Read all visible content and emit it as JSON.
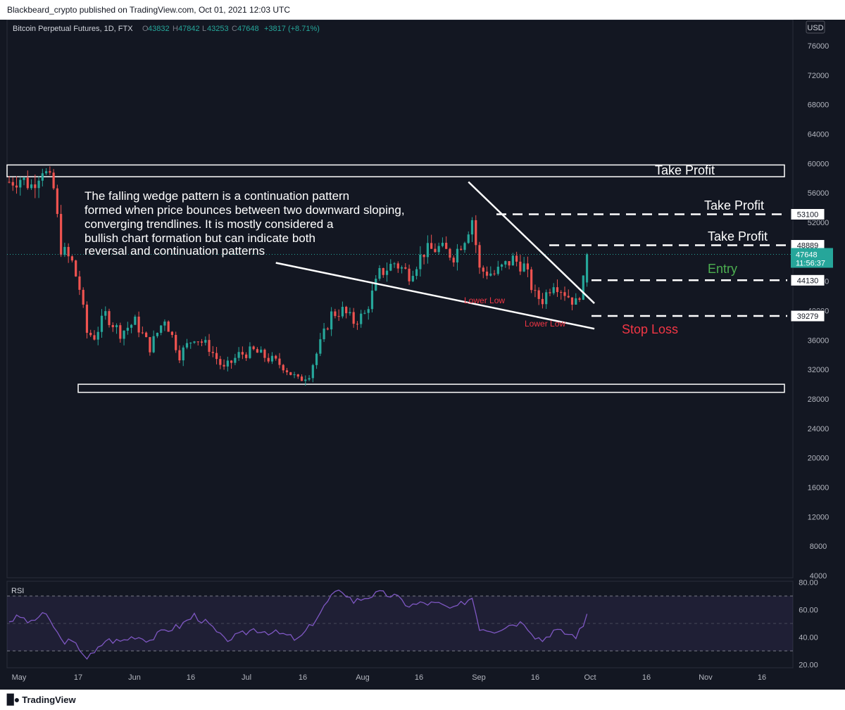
{
  "publisher_line": "Blackbeard_crypto published on TradingView.com, Oct 01, 2021 12:03 UTC",
  "brand": "TradingView",
  "brand_icon": "tradingview-logo-icon",
  "colors": {
    "background": "#131722",
    "up": "#26a69a",
    "down": "#ef5350",
    "rsi": "#7e57c2",
    "entry": "#4caf50",
    "stop": "#f23645"
  },
  "chart_data": {
    "type": "candlestick",
    "title": "Bitcoin Perpetual Futures, 1D, FTX",
    "ohlc": {
      "O": "43832",
      "H": "47842",
      "L": "43253",
      "C": "47648",
      "change": "+3817 (+8.71%)"
    },
    "currency": "USD",
    "y_ticks": [
      "76000",
      "72000",
      "68000",
      "64000",
      "60000",
      "56000",
      "52000",
      "48000",
      "44000",
      "40000",
      "36000",
      "32000",
      "28000",
      "24000",
      "20000",
      "16000",
      "12000",
      "8000",
      "4000"
    ],
    "ylim": [
      4000,
      76000
    ],
    "x_ticks": [
      "May",
      "17",
      "Jun",
      "16",
      "Jul",
      "16",
      "Aug",
      "16",
      "Sep",
      "16",
      "Oct",
      "16",
      "Nov",
      "16"
    ],
    "last_price": {
      "value": "47648",
      "countdown": "11:56:37"
    },
    "levels": [
      {
        "label": "Take Profit",
        "price": 53100,
        "price_label": "53100"
      },
      {
        "label": "Take Profit",
        "price": 48889,
        "price_label": "48889"
      },
      {
        "label": "Entry",
        "price": 44130,
        "price_label": "44130"
      },
      {
        "label": "Stop Loss",
        "price": 39279,
        "price_label": "39279"
      }
    ],
    "zones": [
      {
        "label": "Take Profit",
        "top": 59800,
        "bottom": 58200
      },
      {
        "label": "",
        "top": 30000,
        "bottom": 28900
      }
    ],
    "annotation": [
      "The falling wedge pattern is a continuation pattern",
      "formed when price bounces between two downward sloping,",
      "converging trendlines. It is mostly considered a",
      "bullish chart formation but can indicate both",
      "reversal and continuation patterns"
    ],
    "point_labels": [
      "Lower Low",
      "Lower Low"
    ],
    "wedge": {
      "upper": [
        {
          "day": 124,
          "price": 57500
        },
        {
          "day": 158,
          "price": 41000
        }
      ],
      "lower": [
        {
          "day": 72,
          "price": 46500
        },
        {
          "day": 158,
          "price": 38500
        }
      ]
    },
    "rsi": {
      "label": "RSI",
      "y_ticks": [
        "80.00",
        "60.00",
        "40.00",
        "20.00"
      ],
      "ylim": [
        20,
        80
      ],
      "bands": [
        70,
        50,
        30
      ]
    },
    "anchors": [
      {
        "day": 0,
        "price": 57500,
        "rsi": 52
      },
      {
        "day": 3,
        "price": 58000,
        "rsi": 55
      },
      {
        "day": 6,
        "price": 57000,
        "rsi": 50
      },
      {
        "day": 9,
        "price": 59500,
        "rsi": 58
      },
      {
        "day": 12,
        "price": 56500,
        "rsi": 48
      },
      {
        "day": 14,
        "price": 48500,
        "rsi": 38
      },
      {
        "day": 17,
        "price": 46500,
        "rsi": 36
      },
      {
        "day": 19,
        "price": 43000,
        "rsi": 32
      },
      {
        "day": 21,
        "price": 37000,
        "rsi": 25
      },
      {
        "day": 23,
        "price": 36500,
        "rsi": 28
      },
      {
        "day": 26,
        "price": 39500,
        "rsi": 38
      },
      {
        "day": 30,
        "price": 37000,
        "rsi": 37
      },
      {
        "day": 34,
        "price": 38500,
        "rsi": 41
      },
      {
        "day": 38,
        "price": 35000,
        "rsi": 38
      },
      {
        "day": 42,
        "price": 39000,
        "rsi": 45
      },
      {
        "day": 46,
        "price": 34000,
        "rsi": 48
      },
      {
        "day": 50,
        "price": 36500,
        "rsi": 56
      },
      {
        "day": 54,
        "price": 35000,
        "rsi": 49
      },
      {
        "day": 58,
        "price": 32000,
        "rsi": 38
      },
      {
        "day": 62,
        "price": 34000,
        "rsi": 41
      },
      {
        "day": 66,
        "price": 34500,
        "rsi": 46
      },
      {
        "day": 70,
        "price": 33500,
        "rsi": 44
      },
      {
        "day": 74,
        "price": 32500,
        "rsi": 42
      },
      {
        "day": 78,
        "price": 30500,
        "rsi": 38
      },
      {
        "day": 81,
        "price": 31500,
        "rsi": 47
      },
      {
        "day": 84,
        "price": 35500,
        "rsi": 58
      },
      {
        "day": 87,
        "price": 39500,
        "rsi": 70
      },
      {
        "day": 90,
        "price": 40000,
        "rsi": 74
      },
      {
        "day": 93,
        "price": 38500,
        "rsi": 66
      },
      {
        "day": 96,
        "price": 39500,
        "rsi": 69
      },
      {
        "day": 100,
        "price": 45000,
        "rsi": 72
      },
      {
        "day": 104,
        "price": 46500,
        "rsi": 70
      },
      {
        "day": 108,
        "price": 45000,
        "rsi": 63
      },
      {
        "day": 112,
        "price": 48000,
        "rsi": 65
      },
      {
        "day": 116,
        "price": 48500,
        "rsi": 64
      },
      {
        "day": 120,
        "price": 47500,
        "rsi": 60
      },
      {
        "day": 123,
        "price": 50000,
        "rsi": 66
      },
      {
        "day": 125,
        "price": 52500,
        "rsi": 69
      },
      {
        "day": 127,
        "price": 45500,
        "rsi": 47
      },
      {
        "day": 131,
        "price": 45000,
        "rsi": 45
      },
      {
        "day": 136,
        "price": 47000,
        "rsi": 50
      },
      {
        "day": 139,
        "price": 46000,
        "rsi": 51
      },
      {
        "day": 142,
        "price": 42000,
        "rsi": 41
      },
      {
        "day": 144,
        "price": 41500,
        "rsi": 38
      },
      {
        "day": 147,
        "price": 44000,
        "rsi": 45
      },
      {
        "day": 150,
        "price": 42500,
        "rsi": 43
      },
      {
        "day": 153,
        "price": 41000,
        "rsi": 41
      },
      {
        "day": 155,
        "price": 43800,
        "rsi": 48
      },
      {
        "day": 156,
        "price": 47648,
        "rsi": 57
      }
    ]
  }
}
